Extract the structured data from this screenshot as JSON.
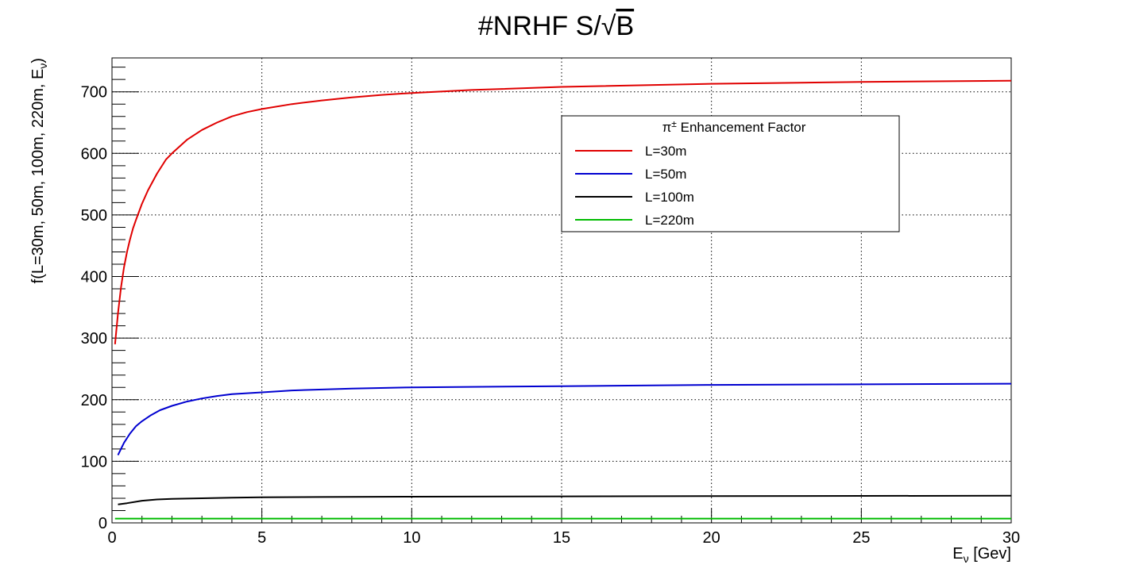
{
  "chart_data": {
    "type": "line",
    "title": "#NRHF S/√B",
    "title_prefix": "#NRHF S/",
    "title_root": "√",
    "title_radicand": "B",
    "xlabel": "Eν [Gev]",
    "xlabel_main": "E",
    "xlabel_sub": "ν",
    "xlabel_unit": " [Gev]",
    "ylabel": "f(L=30m, 50m, 100m, 220m, Eν)",
    "ylabel_main": "f(L=30m, 50m, 100m, 220m, E",
    "ylabel_sub": "ν",
    "ylabel_close": ")",
    "xlim": [
      0,
      30
    ],
    "ylim": [
      0,
      755
    ],
    "xticks": [
      0,
      5,
      10,
      15,
      20,
      25,
      30
    ],
    "yticks": [
      0,
      100,
      200,
      300,
      400,
      500,
      600,
      700
    ],
    "grid": true,
    "legend_position": "top-right",
    "legend_header": "π± Enhancement Factor",
    "legend_header_pi": "π",
    "legend_header_pm": "±",
    "legend_header_text": " Enhancement Factor",
    "series": [
      {
        "name": "L=30m",
        "color": "#e00000",
        "x": [
          0.1,
          0.2,
          0.3,
          0.4,
          0.5,
          0.6,
          0.7,
          0.8,
          1.0,
          1.2,
          1.5,
          1.8,
          2.0,
          2.5,
          3.0,
          3.5,
          4.0,
          4.5,
          5.0,
          6.0,
          7.0,
          8.0,
          9.0,
          10.0,
          12.0,
          15.0,
          20.0,
          25.0,
          30.0
        ],
        "y": [
          290,
          340,
          382,
          415,
          440,
          460,
          478,
          492,
          518,
          540,
          567,
          590,
          600,
          622,
          638,
          650,
          660,
          667,
          672,
          680,
          686,
          691,
          695,
          698,
          703,
          708,
          713,
          716,
          718
        ]
      },
      {
        "name": "L=50m",
        "color": "#0000d0",
        "x": [
          0.2,
          0.4,
          0.6,
          0.8,
          1.0,
          1.3,
          1.6,
          2.0,
          2.5,
          3.0,
          3.5,
          4.0,
          5.0,
          6.0,
          8.0,
          10.0,
          15.0,
          20.0,
          25.0,
          30.0
        ],
        "y": [
          110,
          130,
          145,
          157,
          165,
          175,
          183,
          190,
          197,
          202,
          206,
          209,
          212,
          215,
          218,
          220,
          222,
          224,
          225,
          226
        ]
      },
      {
        "name": "L=100m",
        "color": "#000000",
        "x": [
          0.2,
          0.5,
          1.0,
          1.5,
          2.0,
          3.0,
          4.0,
          5.0,
          7.0,
          10.0,
          15.0,
          20.0,
          25.0,
          30.0
        ],
        "y": [
          30,
          32,
          36,
          38,
          39,
          40,
          41,
          41.5,
          42,
          42.5,
          43,
          43.5,
          43.8,
          44
        ]
      },
      {
        "name": "L=220m",
        "color": "#00bb00",
        "x": [
          0.1,
          5,
          10,
          15,
          20,
          25,
          30
        ],
        "y": [
          7,
          7,
          7,
          7,
          7,
          7,
          7
        ]
      }
    ]
  }
}
